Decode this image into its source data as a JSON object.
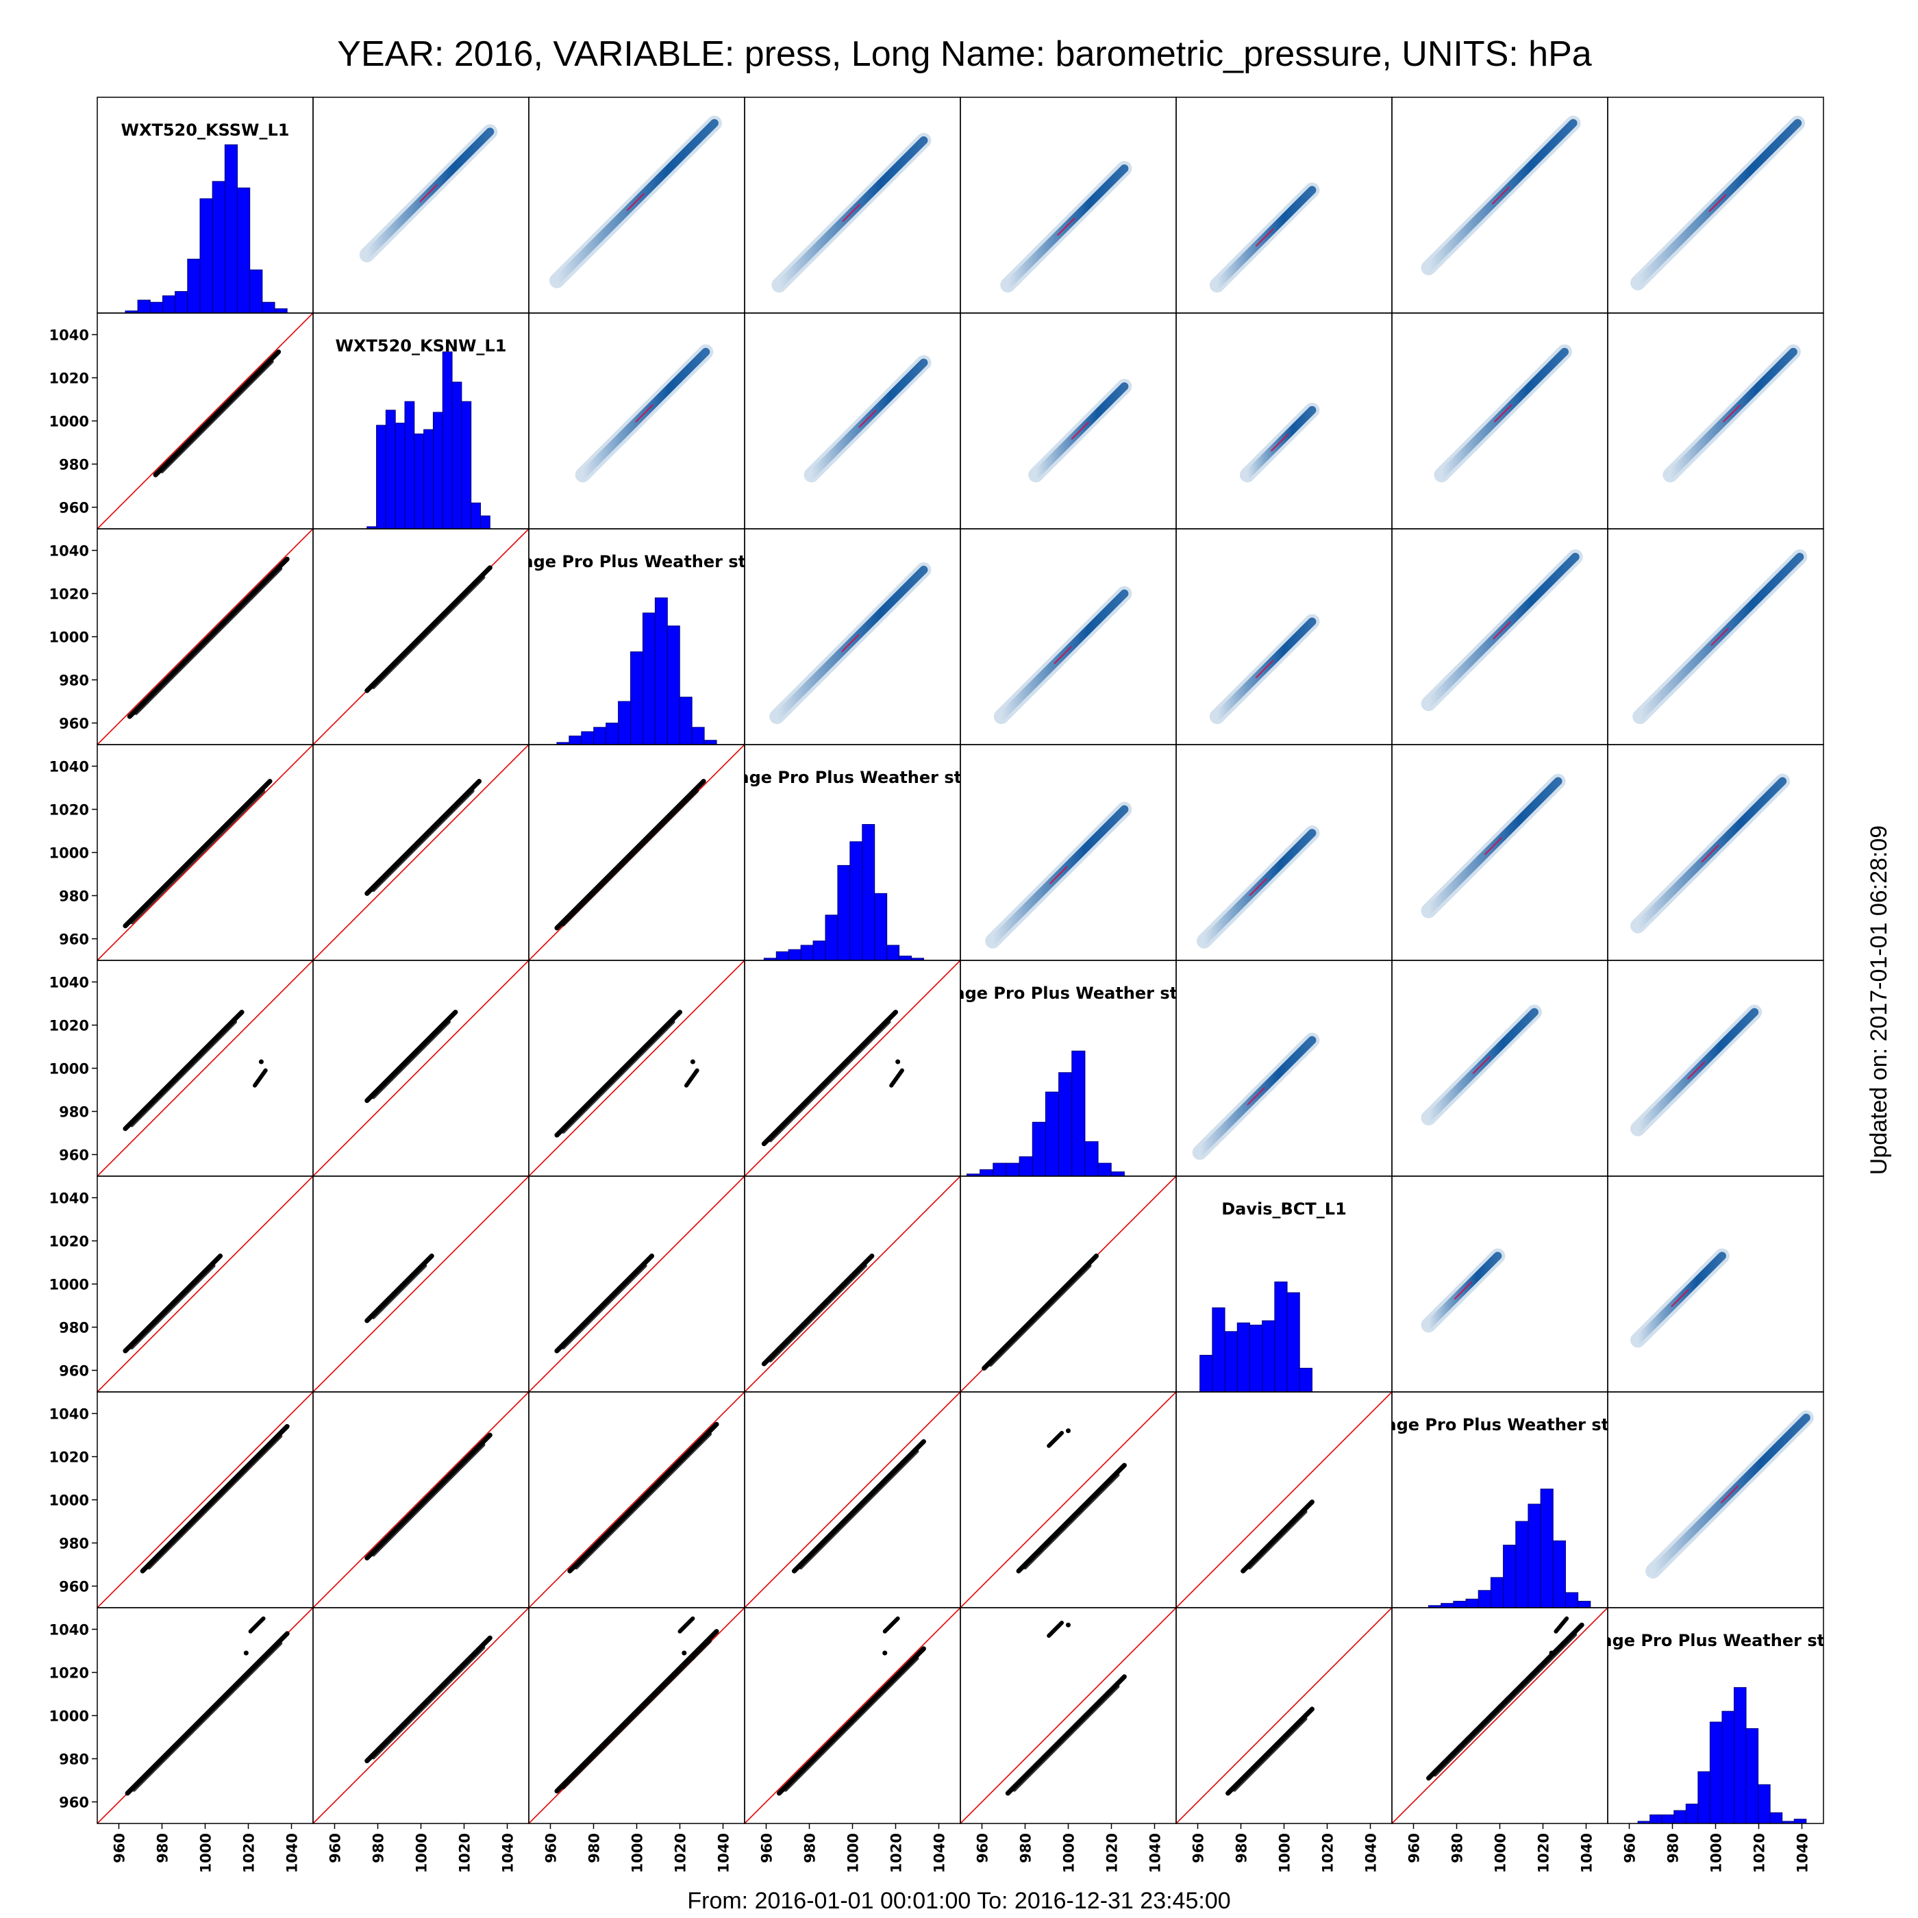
{
  "page": {
    "title": "YEAR: 2016, VARIABLE: press, Long Name: barometric_pressure, UNITS: hPa",
    "footer": "From: 2016-01-01 00:01:00 To: 2016-12-31 23:45:00",
    "updated": "Updated on: 2017-01-01 06:28:09"
  },
  "chart_data": {
    "type": "scatter-matrix",
    "lower_panels": "scatter",
    "upper_panels": "density",
    "diagonal_panels": "histogram",
    "reference_line": "1:1",
    "axis_range": [
      950,
      1050
    ],
    "ticks": [
      960,
      980,
      1000,
      1020,
      1040
    ],
    "colors": {
      "histogram_fill": "#0000ff",
      "reference_line": "#e00000",
      "points": "#000000",
      "density": "#08519c"
    },
    "stations": [
      {
        "label": "WXT520_KSSW_L1",
        "range": [
          963,
          1038
        ],
        "hist": [
          0.01,
          0.06,
          0.05,
          0.08,
          0.1,
          0.25,
          0.53,
          0.61,
          0.78,
          0.58,
          0.2,
          0.05,
          0.02
        ]
      },
      {
        "label": "WXT520_KSNW_L1",
        "range": [
          975,
          1032
        ],
        "hist": [
          0.01,
          0.48,
          0.55,
          0.49,
          0.59,
          0.44,
          0.46,
          0.54,
          0.82,
          0.68,
          0.59,
          0.12,
          0.06
        ]
      },
      {
        "label": "Vantage Pro Plus Weather station",
        "range": [
          963,
          1037
        ],
        "hist": [
          0.01,
          0.04,
          0.06,
          0.08,
          0.1,
          0.2,
          0.43,
          0.61,
          0.68,
          0.55,
          0.22,
          0.08,
          0.02
        ]
      },
      {
        "label": "Vantage Pro Plus Weather station",
        "range": [
          959,
          1033
        ],
        "hist": [
          0.01,
          0.04,
          0.05,
          0.07,
          0.09,
          0.21,
          0.44,
          0.55,
          0.63,
          0.31,
          0.07,
          0.02,
          0.01
        ]
      },
      {
        "label": "Vantage Pro Plus Weather station",
        "range": [
          953,
          1026
        ],
        "hist": [
          0.01,
          0.03,
          0.06,
          0.06,
          0.09,
          0.25,
          0.39,
          0.48,
          0.58,
          0.16,
          0.06,
          0.02
        ]
      },
      {
        "label": "Davis_BCT_L1",
        "range": [
          961,
          1013
        ],
        "hist": [
          0.17,
          0.39,
          0.28,
          0.32,
          0.31,
          0.33,
          0.51,
          0.46,
          0.11
        ]
      },
      {
        "label": "Vantage Pro Plus Weather station",
        "range": [
          967,
          1042
        ],
        "hist": [
          0.01,
          0.02,
          0.03,
          0.04,
          0.08,
          0.14,
          0.29,
          0.4,
          0.48,
          0.55,
          0.31,
          0.07,
          0.03
        ]
      },
      {
        "label": "Vantage Pro Plus Weather station",
        "range": [
          964,
          1042
        ],
        "hist": [
          0.01,
          0.04,
          0.04,
          0.06,
          0.09,
          0.24,
          0.47,
          0.52,
          0.63,
          0.44,
          0.18,
          0.05,
          0.01,
          0.02
        ]
      }
    ],
    "offsets": [
      [
        0,
        2,
        -2,
        -2,
        -8,
        0,
        4,
        0
      ],
      [
        -2,
        0,
        0,
        -6,
        -10,
        -14,
        2,
        -4
      ],
      [
        -2,
        0,
        0,
        -2,
        -6,
        -12,
        2,
        -2
      ],
      [
        3,
        6,
        2,
        0,
        -6,
        -10,
        6,
        2
      ],
      [
        9,
        10,
        6,
        6,
        0,
        -5,
        10,
        8
      ],
      [
        6,
        8,
        6,
        4,
        0,
        0,
        11,
        7
      ],
      [
        -4,
        -2,
        -2,
        -6,
        -10,
        -14,
        0,
        -4
      ],
      [
        0,
        4,
        2,
        -2,
        -8,
        -10,
        4,
        0
      ]
    ],
    "outliers": [
      {
        "row": 4,
        "col": 0,
        "x": [
          1023,
          1028
        ],
        "y": [
          992,
          999
        ],
        "dots": [
          [
            1026,
            1003
          ]
        ]
      },
      {
        "row": 4,
        "col": 2,
        "x": [
          1023,
          1028
        ],
        "y": [
          992,
          999
        ],
        "dots": [
          [
            1026,
            1003
          ]
        ]
      },
      {
        "row": 4,
        "col": 3,
        "x": [
          1018,
          1023
        ],
        "y": [
          992,
          999
        ],
        "dots": [
          [
            1021,
            1003
          ]
        ]
      },
      {
        "row": 6,
        "col": 4,
        "x": [
          991,
          997
        ],
        "y": [
          1025,
          1031
        ],
        "dots": [
          [
            1000,
            1032
          ]
        ]
      },
      {
        "row": 7,
        "col": 0,
        "x": [
          1021,
          1027
        ],
        "y": [
          1039,
          1045
        ],
        "dots": [
          [
            1019,
            1029
          ]
        ]
      },
      {
        "row": 7,
        "col": 2,
        "x": [
          1020,
          1026
        ],
        "y": [
          1039,
          1045
        ],
        "dots": [
          [
            1022,
            1029
          ],
          [
            1026,
            1027
          ]
        ]
      },
      {
        "row": 7,
        "col": 3,
        "x": [
          1015,
          1021
        ],
        "y": [
          1039,
          1045
        ],
        "dots": [
          [
            1015,
            1029
          ]
        ]
      },
      {
        "row": 7,
        "col": 4,
        "x": [
          991,
          997
        ],
        "y": [
          1037,
          1043
        ],
        "dots": [
          [
            1000,
            1042
          ]
        ]
      },
      {
        "row": 7,
        "col": 6,
        "x": [
          1026,
          1031
        ],
        "y": [
          1039,
          1045
        ],
        "dots": [
          [
            1024,
            1029
          ]
        ]
      }
    ]
  }
}
